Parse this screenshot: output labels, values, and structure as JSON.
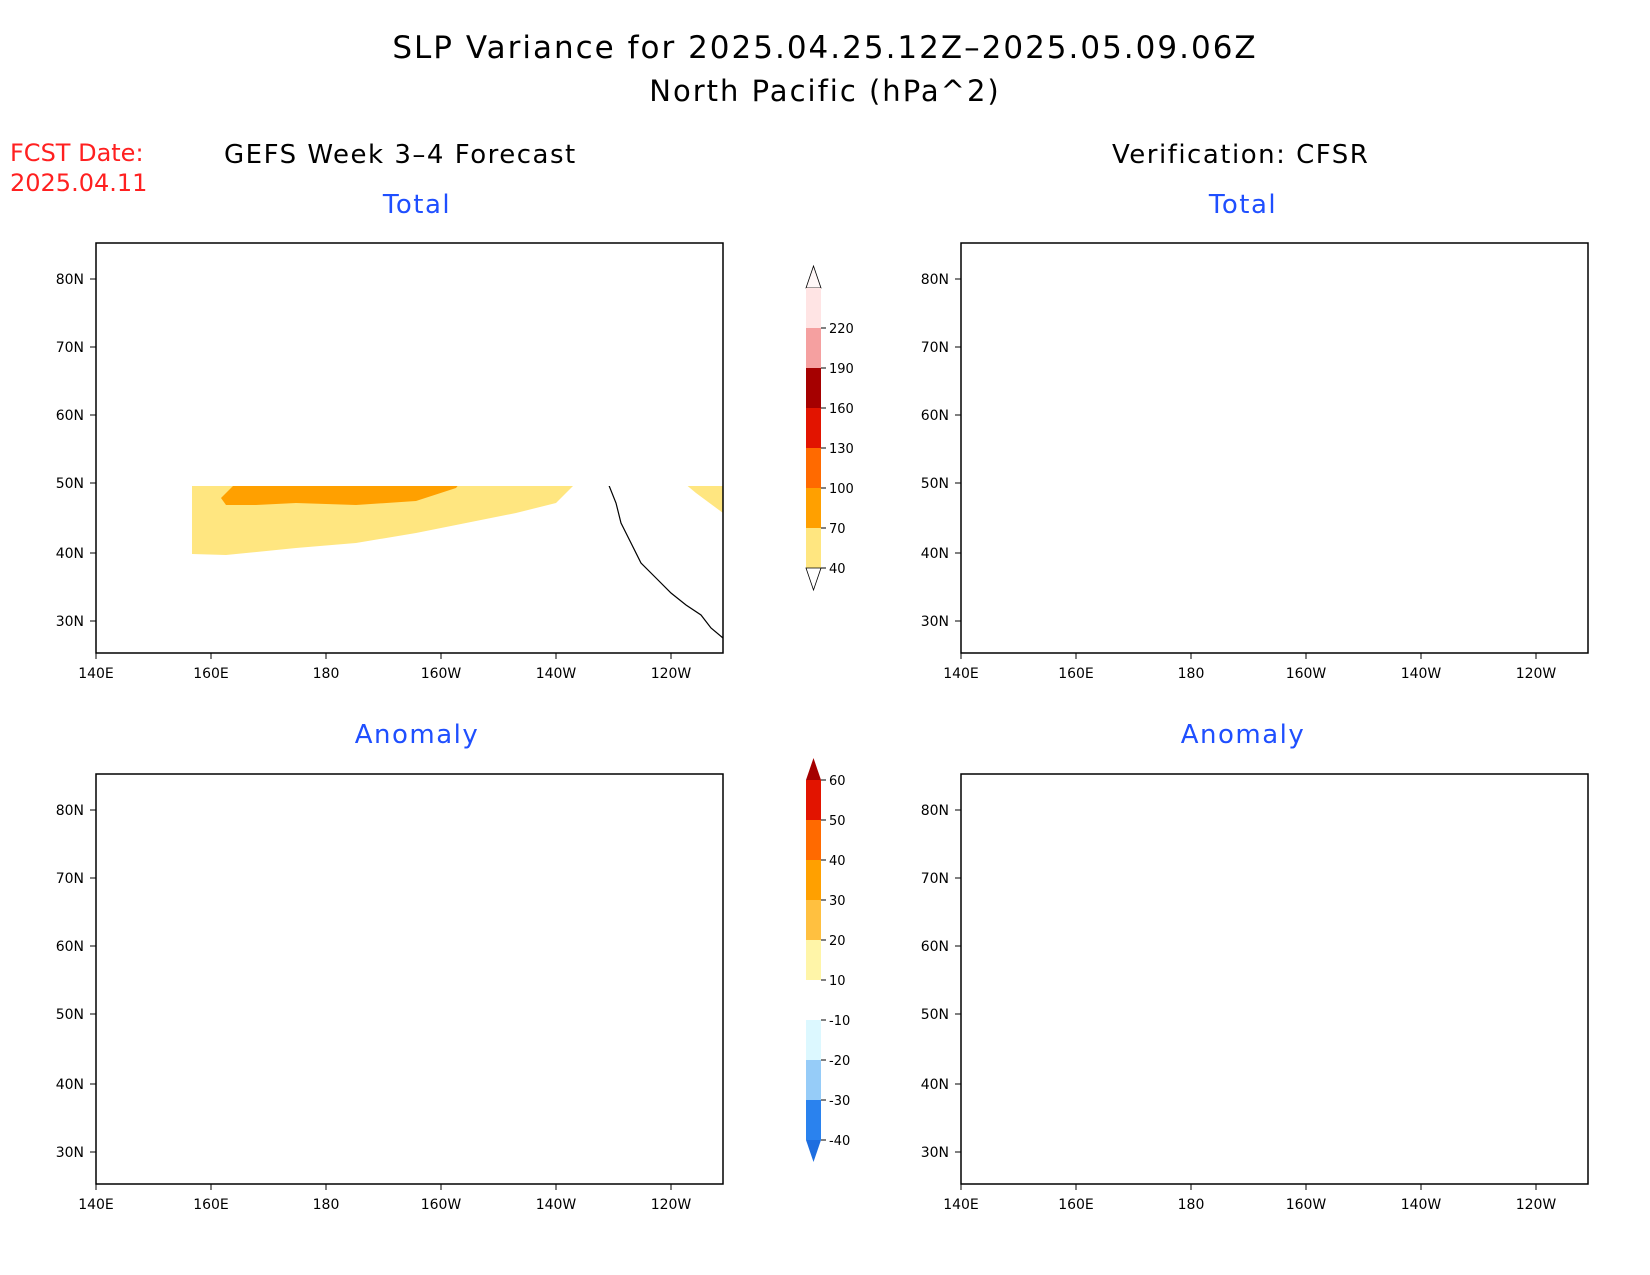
{
  "title": "SLP Variance for 2025.04.25.12Z–2025.05.09.06Z",
  "subtitle": "North Pacific (hPa^2)",
  "fcst_label": "FCST Date:",
  "fcst_date": "2025.04.11",
  "left_column_title": "GEFS Week 3–4 Forecast",
  "right_column_title": "Verification: CFSR",
  "panel_titles": {
    "top_left": "Total",
    "top_right": "Total",
    "bottom_left": "Anomaly",
    "bottom_right": "Anomaly"
  },
  "axes": {
    "lon_labels": [
      "140E",
      "160E",
      "180",
      "160W",
      "140W",
      "120W"
    ],
    "lat_labels": [
      "30N",
      "40N",
      "50N",
      "60N",
      "70N",
      "80N"
    ]
  },
  "colorbar_total": {
    "levels": [
      "40",
      "70",
      "100",
      "130",
      "160",
      "190",
      "220"
    ],
    "colors": [
      "#ffe680",
      "#ffa000",
      "#ff6a00",
      "#e21400",
      "#a50000",
      "#f5a0a0",
      "#ffe4e4"
    ]
  },
  "colorbar_anomaly": {
    "levels": [
      "-40",
      "-30",
      "-20",
      "-10",
      "10",
      "20",
      "30",
      "40",
      "50",
      "60"
    ],
    "colors": [
      "#1e6ee0",
      "#2a82ee",
      "#96ccf8",
      "#dcf8ff",
      "#ffffff",
      "#fff5a8",
      "#ffc040",
      "#ffa000",
      "#ff6a00",
      "#e21400",
      "#a50000"
    ]
  }
}
